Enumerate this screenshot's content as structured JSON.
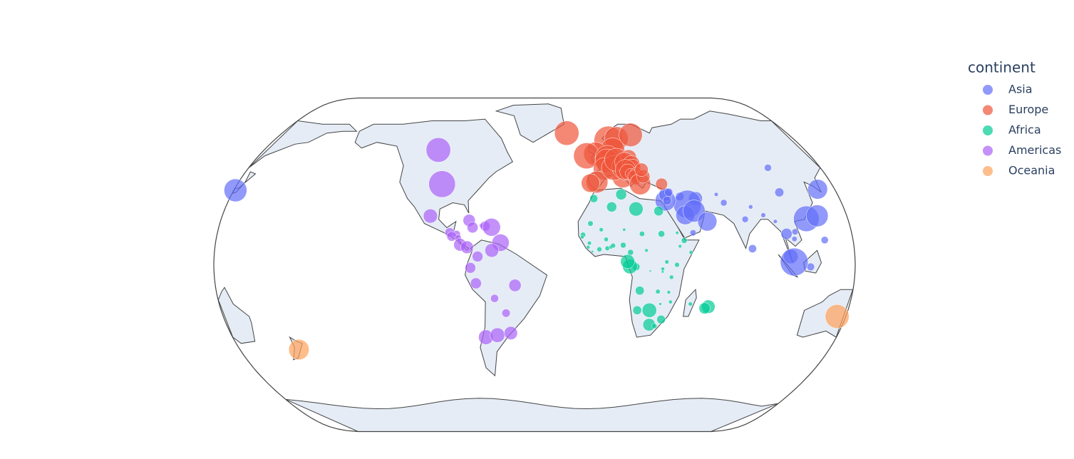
{
  "chart_data": {
    "type": "scatter_geo",
    "projection": "natural earth",
    "legend_title": "continent",
    "legend_position": "right",
    "series": [
      {
        "name": "Asia",
        "color": "#636efa",
        "lon": [
          139,
          127.8,
          104,
          105,
          114.2,
          121,
          122,
          106,
          101,
          105,
          96,
          102,
          103.8,
          113,
          90,
          84,
          79,
          80.7,
          69,
          66,
          53,
          44,
          47.5,
          45,
          50.5,
          57,
          48,
          35,
          35.8,
          36,
          38
        ],
        "lat": [
          36,
          36.5,
          35,
          47,
          22.3,
          23.7,
          12,
          16,
          15,
          12.5,
          21,
          4,
          1.35,
          -1,
          24,
          28,
          22,
          7.8,
          30,
          34,
          32,
          33,
          29.3,
          24,
          26,
          21,
          15.5,
          31,
          33.9,
          31,
          35
        ],
        "values": [
          31656,
          23348,
          4959,
          3096,
          39725,
          28718,
          3190,
          2442,
          7458,
          1714,
          944,
          12452,
          47143,
          3541,
          1391,
          1091,
          2452,
          3970,
          2606,
          975,
          11606,
          4471,
          47307,
          21655,
          29796,
          22316,
          2281,
          25523,
          10461,
          4519,
          4184
        ]
      },
      {
        "name": "Europe",
        "color": "#EF553B",
        "lon": [
          -19,
          9,
          15,
          26,
          10,
          -2,
          -8,
          5.3,
          4.5,
          2,
          -4,
          -8,
          12.5,
          8,
          14.5,
          10.5,
          19,
          15.5,
          19.5,
          19.5,
          15,
          16,
          17.8,
          21,
          19.3,
          20,
          22,
          25,
          25,
          35
        ],
        "lat": [
          65,
          61,
          62,
          64,
          56,
          54,
          53,
          52,
          50.5,
          46.5,
          40,
          39.5,
          42.5,
          47,
          47.5,
          51,
          52,
          49.8,
          48.7,
          47,
          46,
          45,
          44,
          44,
          42.8,
          41,
          39,
          42.7,
          46,
          39
        ],
        "values": [
          36181,
          49357,
          33860,
          33207,
          35278,
          33203,
          40676,
          36798,
          33693,
          30470,
          28821,
          20510,
          28570,
          37506,
          36126,
          32170,
          15390,
          22833,
          18678,
          18009,
          25768,
          14619,
          7446,
          9786,
          9254,
          5937,
          27538,
          10681,
          10808,
          8458
        ]
      },
      {
        "name": "Africa",
        "color": "#00cc96",
        "lon": [
          -7,
          3,
          9.5,
          17,
          30,
          -10,
          -4,
          9,
          19,
          30,
          -14.5,
          -15,
          -11,
          -11.8,
          -9.5,
          -5.5,
          -1,
          1,
          2.3,
          -1.5,
          8,
          12,
          21,
          40,
          39,
          42.6,
          46,
          38,
          32.3,
          30,
          30,
          35,
          23,
          15,
          11.6,
          10.3,
          17.5,
          27.8,
          34,
          35.5,
          29.8,
          17,
          24,
          25,
          28.2,
          31.5,
          47,
          57.5,
          55.5
        ],
        "lat": [
          32,
          28,
          34,
          27,
          26,
          20,
          17,
          17,
          15,
          15,
          14.5,
          13.4,
          10.5,
          8.5,
          6.4,
          7.5,
          8,
          8.6,
          9.3,
          12.3,
          9.5,
          6,
          7,
          9,
          15.5,
          11.8,
          6,
          0,
          1.4,
          -2,
          -3.4,
          -6,
          -3,
          -1,
          -0.8,
          1.6,
          -12.5,
          -13,
          -13.3,
          -18,
          -19,
          -22,
          -22,
          -29,
          -29.6,
          -26.5,
          -19,
          -20.3,
          -21.1
        ],
        "values": [
          3820,
          6223,
          7093,
          12057,
          5581,
          1803,
          1042,
          619,
          1704,
          2602,
          1712,
          753,
          943,
          863,
          415,
          1545,
          1328,
          883,
          1441,
          1217,
          2014,
          2042,
          706,
          691,
          641,
          2082,
          926,
          1463,
          1056,
          863,
          430,
          1107,
          278,
          3633,
          13206,
          12154,
          4797,
          1271,
          759,
          824,
          470,
          4811,
          12570,
          9270,
          1569,
          4513,
          1045,
          10957,
          7670
        ]
      },
      {
        "name": "Americas",
        "color": "#ab63fa",
        "lon": [
          -106,
          -98,
          -102,
          -79.5,
          -72.3,
          -70.2,
          -77.3,
          -66.5,
          -61.2,
          -90.2,
          -86.2,
          -88.9,
          -85.2,
          -84,
          -80,
          -74,
          -66,
          -78,
          -75,
          -64.7,
          -53,
          -58.4,
          -71,
          -64,
          -56
        ],
        "lat": [
          56,
          39,
          23.6,
          21.5,
          19,
          18.7,
          18.1,
          18.2,
          10.7,
          15.7,
          14.8,
          13.8,
          12.9,
          9.7,
          8.5,
          4,
          7,
          -1.5,
          -9,
          -16.3,
          -10,
          -23.4,
          -35,
          -34,
          -33
        ],
        "values": [
          36319,
          42952,
          11978,
          8948,
          1202,
          6025,
          7321,
          19329,
          18008,
          5186,
          3548,
          5728,
          2749,
          9645,
          9809,
          7007,
          11416,
          6873,
          7409,
          3822,
          9066,
          4173,
          13172,
          12779,
          10611
        ]
      },
      {
        "name": "Oceania",
        "color": "#FFA15A",
        "lon": [
          133,
          174
        ],
        "lat": [
          -25,
          -41
        ],
        "values": [
          34435,
          25185
        ]
      }
    ]
  }
}
